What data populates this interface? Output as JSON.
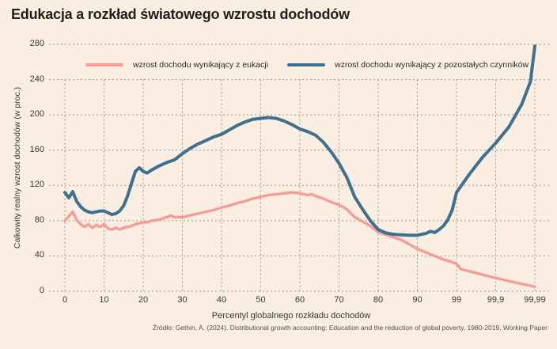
{
  "page": {
    "title": "Edukacja a rozkład światowego wzrostu dochodów",
    "source": "Źródło: Gethin, A. (2024). Distributional growth accounting: Education and the reduction of global poverty, 1980-2019. Working Paper",
    "background_color": "#FAEEE2"
  },
  "chart_data": {
    "type": "line",
    "title": "Edukacja a rozkład światowego wzrostu dochodów",
    "xlabel": "Percentyl globalnego rozkładu dochodów",
    "ylabel": "Całkowity realny wzrost dochodów (w proc.)",
    "x_tick_labels": [
      "0",
      "10",
      "20",
      "30",
      "40",
      "50",
      "60",
      "70",
      "80",
      "90",
      "99",
      "99,9",
      "99,99"
    ],
    "x_scale": "percentile, top compressed: ticks evenly spaced at 0..90 then 99, 99.9, 99.99",
    "y_ticks": [
      0,
      40,
      80,
      120,
      160,
      200,
      240,
      280
    ],
    "y_max": 280,
    "grid": true,
    "grid_color": "#9C968B",
    "legend_position": "top",
    "series": [
      {
        "name": "wzrost dochodu wynikający z eukacji",
        "color": "#F79C98",
        "points": [
          [
            0,
            80
          ],
          [
            1,
            85
          ],
          [
            2,
            90
          ],
          [
            3,
            81
          ],
          [
            4,
            76
          ],
          [
            5,
            73
          ],
          [
            6,
            76
          ],
          [
            7,
            72
          ],
          [
            8,
            75
          ],
          [
            9,
            73
          ],
          [
            10,
            76
          ],
          [
            11,
            71
          ],
          [
            12,
            70
          ],
          [
            13,
            72
          ],
          [
            14,
            70
          ],
          [
            15,
            72
          ],
          [
            16,
            73
          ],
          [
            17,
            74
          ],
          [
            18,
            76
          ],
          [
            19,
            77
          ],
          [
            20,
            78
          ],
          [
            21,
            78
          ],
          [
            22,
            80
          ],
          [
            24,
            81
          ],
          [
            26,
            84
          ],
          [
            27,
            86
          ],
          [
            28,
            84
          ],
          [
            30,
            84
          ],
          [
            32,
            86
          ],
          [
            34,
            88
          ],
          [
            36,
            90
          ],
          [
            38,
            92
          ],
          [
            40,
            95
          ],
          [
            42,
            97
          ],
          [
            44,
            100
          ],
          [
            46,
            102
          ],
          [
            48,
            105
          ],
          [
            50,
            107
          ],
          [
            52,
            109
          ],
          [
            54,
            110
          ],
          [
            56,
            111
          ],
          [
            58,
            112
          ],
          [
            60,
            111
          ],
          [
            62,
            109
          ],
          [
            63,
            110
          ],
          [
            64,
            108
          ],
          [
            66,
            105
          ],
          [
            68,
            101
          ],
          [
            70,
            98
          ],
          [
            72,
            93
          ],
          [
            74,
            84
          ],
          [
            76,
            79
          ],
          [
            78,
            74
          ],
          [
            80,
            67
          ],
          [
            82,
            64
          ],
          [
            84,
            61
          ],
          [
            86,
            58
          ],
          [
            88,
            53
          ],
          [
            90,
            48
          ],
          [
            92,
            44
          ],
          [
            94,
            40
          ],
          [
            96,
            36
          ],
          [
            98,
            33
          ],
          [
            99,
            31
          ],
          [
            99.1,
            25
          ],
          [
            99.5,
            20
          ],
          [
            99.9,
            15
          ],
          [
            99.99,
            5
          ]
        ]
      },
      {
        "name": "wzrost dochodu wynikający z pozostałych czynników",
        "color": "#3F7090",
        "points": [
          [
            0,
            112
          ],
          [
            1,
            106
          ],
          [
            2,
            113
          ],
          [
            3,
            102
          ],
          [
            4,
            96
          ],
          [
            5,
            92
          ],
          [
            6,
            90
          ],
          [
            7,
            89
          ],
          [
            8,
            90
          ],
          [
            9,
            91
          ],
          [
            10,
            91
          ],
          [
            11,
            89
          ],
          [
            12,
            87
          ],
          [
            13,
            88
          ],
          [
            14,
            91
          ],
          [
            15,
            97
          ],
          [
            16,
            108
          ],
          [
            17,
            122
          ],
          [
            18,
            136
          ],
          [
            19,
            140
          ],
          [
            20,
            136
          ],
          [
            21,
            134
          ],
          [
            22,
            137
          ],
          [
            24,
            142
          ],
          [
            26,
            146
          ],
          [
            28,
            149
          ],
          [
            30,
            156
          ],
          [
            32,
            162
          ],
          [
            34,
            167
          ],
          [
            36,
            171
          ],
          [
            38,
            175
          ],
          [
            40,
            178
          ],
          [
            42,
            183
          ],
          [
            44,
            188
          ],
          [
            46,
            192
          ],
          [
            48,
            195
          ],
          [
            50,
            196
          ],
          [
            52,
            197
          ],
          [
            54,
            196
          ],
          [
            56,
            193
          ],
          [
            58,
            189
          ],
          [
            60,
            184
          ],
          [
            62,
            181
          ],
          [
            64,
            177
          ],
          [
            66,
            169
          ],
          [
            68,
            158
          ],
          [
            70,
            145
          ],
          [
            72,
            129
          ],
          [
            74,
            107
          ],
          [
            76,
            93
          ],
          [
            78,
            80
          ],
          [
            80,
            70
          ],
          [
            82,
            66
          ],
          [
            84,
            64.5
          ],
          [
            86,
            64
          ],
          [
            88,
            63.5
          ],
          [
            90,
            63.5
          ],
          [
            91,
            64.5
          ],
          [
            92,
            65.5
          ],
          [
            93,
            68
          ],
          [
            94,
            66.5
          ],
          [
            95,
            70
          ],
          [
            96,
            74
          ],
          [
            97,
            81
          ],
          [
            98,
            92
          ],
          [
            99,
            112
          ],
          [
            99.3,
            133
          ],
          [
            99.6,
            152
          ],
          [
            99.9,
            168
          ],
          [
            99.93,
            186
          ],
          [
            99.96,
            212
          ],
          [
            99.98,
            238
          ],
          [
            99.99,
            278
          ]
        ]
      }
    ]
  }
}
